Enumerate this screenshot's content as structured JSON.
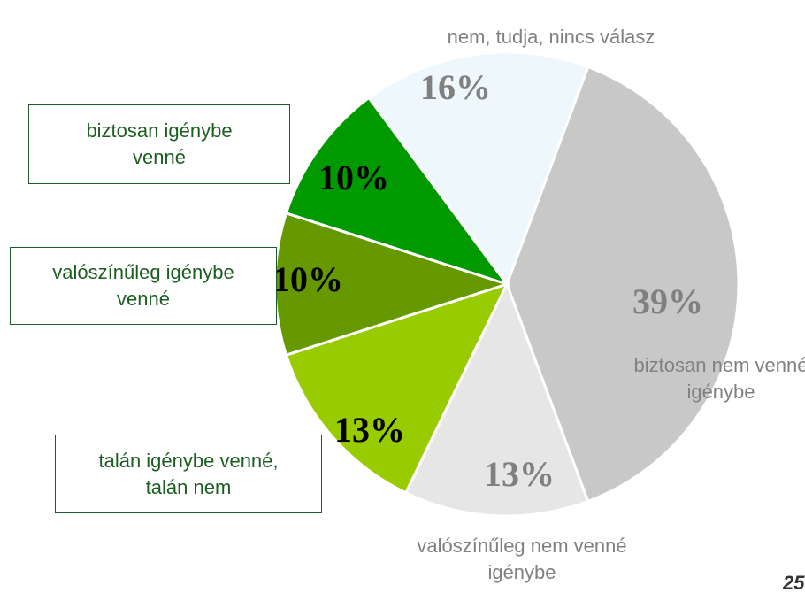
{
  "chart_data": {
    "type": "pie",
    "categories": [
      "biztosan nem venné igénybe",
      "valószínűleg nem venné igénybe",
      "talán igénybe venné, talán nem",
      "valószínűleg igénybe venné",
      "biztosan igénybe venné",
      "nem, tudja, nincs válasz"
    ],
    "values": [
      39,
      13,
      13,
      10,
      10,
      16
    ],
    "value_labels": [
      "39%",
      "13%",
      "13%",
      "10%",
      "10%",
      "16%"
    ],
    "colors": [
      "#c8c8c8",
      "#e6e6e6",
      "#99cc00",
      "#669900",
      "#009900",
      "#eef8fc"
    ],
    "page_number": "25"
  }
}
